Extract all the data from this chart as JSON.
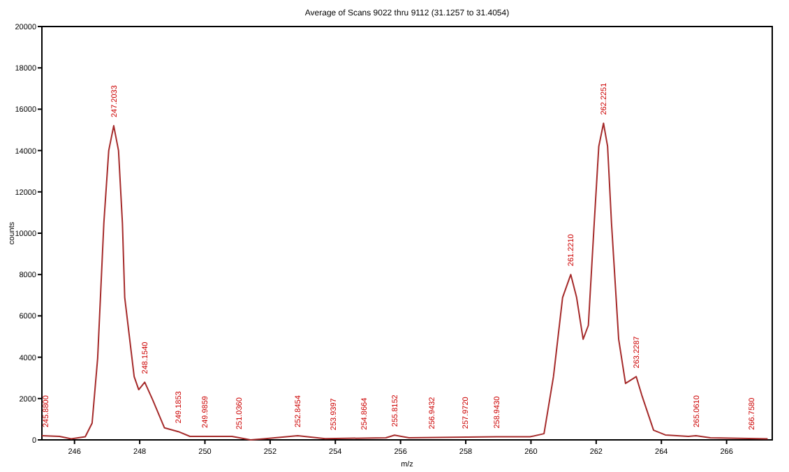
{
  "chart_data": {
    "type": "line",
    "title": "Average of Scans 9022 thru 9112 (31.1257 to 31.4054)",
    "xlabel": "m/z",
    "ylabel": "counts",
    "xlim": [
      245,
      267.4
    ],
    "ylim": [
      0,
      20000
    ],
    "xticks": [
      246,
      248,
      250,
      252,
      254,
      256,
      258,
      260,
      262,
      264,
      266
    ],
    "yticks": [
      0,
      2000,
      4000,
      6000,
      8000,
      10000,
      12000,
      14000,
      16000,
      18000,
      20000
    ],
    "series": [
      {
        "color": "#a52a2a",
        "x": [
          245,
          245.54,
          245.9,
          246.33,
          246.54,
          246.71,
          246.9,
          247.05,
          247.2033,
          247.35,
          247.47,
          247.54,
          247.83,
          247.97,
          248.154,
          248.4,
          248.76,
          249.1853,
          249.54,
          250.83,
          251.4,
          251.8,
          252.8454,
          253.69,
          255.55,
          255.8152,
          256.26,
          258.943,
          259.97,
          260.4,
          260.69,
          260.97,
          261.221,
          261.4,
          261.6,
          261.76,
          261.94,
          262.08,
          262.2251,
          262.35,
          262.47,
          262.69,
          262.9,
          263.2287,
          263.4,
          263.76,
          264.12,
          264.83,
          265.061,
          265.5,
          267.26
        ],
        "values": [
          200,
          170,
          50,
          150,
          810,
          3950,
          10480,
          14000,
          15200,
          14000,
          10480,
          6900,
          3060,
          2430,
          2790,
          1930,
          580,
          400,
          170,
          170,
          0,
          50,
          200,
          60,
          100,
          230,
          100,
          150,
          150,
          300,
          3060,
          6890,
          8000,
          6890,
          4870,
          5540,
          10490,
          14200,
          15320,
          14200,
          10490,
          4870,
          2730,
          3060,
          2160,
          470,
          240,
          170,
          200,
          100,
          50
        ]
      }
    ],
    "annotations": [
      {
        "text": "245.8800",
        "x": 245.1,
        "y": 200
      },
      {
        "text": "247.2033",
        "x": 247.2033,
        "y": 15200
      },
      {
        "text": "248.1540",
        "x": 248.154,
        "y": 2790
      },
      {
        "text": "249.1853",
        "x": 249.1853,
        "y": 400
      },
      {
        "text": "249.9859",
        "x": 249.9859,
        "y": 170
      },
      {
        "text": "251.0360",
        "x": 251.036,
        "y": 100
      },
      {
        "text": "252.8454",
        "x": 252.8454,
        "y": 200
      },
      {
        "text": "253.9397",
        "x": 253.9397,
        "y": 60
      },
      {
        "text": "254.8664",
        "x": 254.8664,
        "y": 80
      },
      {
        "text": "255.8152",
        "x": 255.8152,
        "y": 230
      },
      {
        "text": "256.9432",
        "x": 256.9432,
        "y": 120
      },
      {
        "text": "257.9720",
        "x": 257.972,
        "y": 130
      },
      {
        "text": "258.9430",
        "x": 258.943,
        "y": 150
      },
      {
        "text": "261.2210",
        "x": 261.221,
        "y": 8000
      },
      {
        "text": "262.2251",
        "x": 262.2251,
        "y": 15320
      },
      {
        "text": "263.2287",
        "x": 263.2287,
        "y": 3060
      },
      {
        "text": "265.0610",
        "x": 265.061,
        "y": 200
      },
      {
        "text": "266.7580",
        "x": 266.758,
        "y": 80
      }
    ]
  }
}
